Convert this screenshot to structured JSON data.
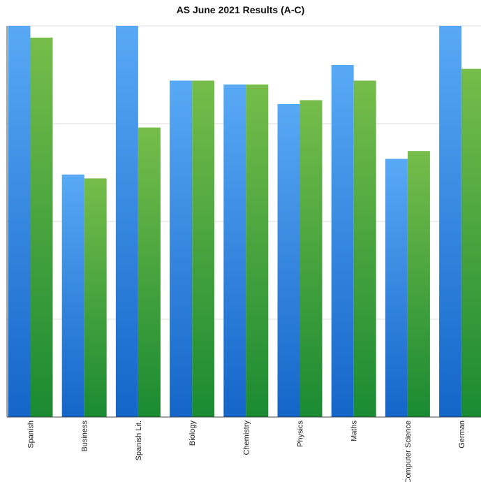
{
  "chart_data": {
    "type": "bar",
    "title": "AS June 2021 Results (A-C)",
    "categories": [
      "Spanish",
      "Business",
      "Spanish Lit.",
      "Biology",
      "Chemistry",
      "Physics",
      "Maths",
      "Computer Science",
      "German"
    ],
    "series": [
      {
        "values": [
          100,
          62,
          100,
          86,
          85,
          80,
          90,
          66,
          100
        ]
      },
      {
        "values": [
          97,
          61,
          74,
          86,
          85,
          81,
          86,
          68,
          89
        ]
      }
    ],
    "ylim": [
      0,
      100
    ],
    "grid": true,
    "legend": "none",
    "colors": {
      "series1_top": "#58a9f5",
      "series1_bottom": "#1565c9",
      "series2_top": "#76bd4a",
      "series2_bottom": "#1a8a32",
      "grid": "#dddddd",
      "axis": "#444444"
    }
  }
}
